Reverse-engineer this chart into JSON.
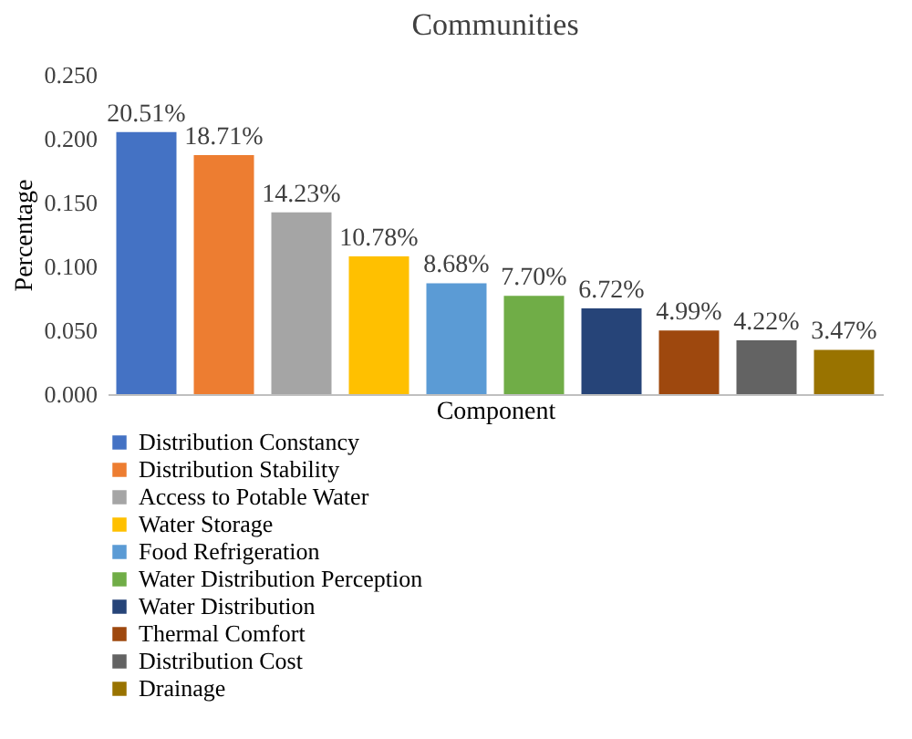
{
  "chart_data": {
    "type": "bar",
    "title": "Communities",
    "xlabel": "Component",
    "ylabel": "Percentage",
    "categories": [
      null,
      null,
      null,
      null,
      null,
      null,
      null,
      null,
      null,
      null
    ],
    "series": [
      {
        "name": "Distribution Constancy",
        "color": "#4472c4",
        "values": [
          0.2051,
          null,
          null,
          null,
          null,
          null,
          null,
          null,
          null,
          null
        ],
        "value_labels": [
          "20.51%",
          null,
          null,
          null,
          null,
          null,
          null,
          null,
          null,
          null
        ]
      },
      {
        "name": "Distribution Stability",
        "color": "#ed7d31",
        "values": [
          null,
          0.1871,
          null,
          null,
          null,
          null,
          null,
          null,
          null,
          null
        ],
        "value_labels": [
          null,
          "18.71%",
          null,
          null,
          null,
          null,
          null,
          null,
          null,
          null
        ]
      },
      {
        "name": "Access to Potable Water",
        "color": "#a5a5a5",
        "values": [
          null,
          null,
          0.1423,
          null,
          null,
          null,
          null,
          null,
          null,
          null
        ],
        "value_labels": [
          null,
          null,
          "14.23%",
          null,
          null,
          null,
          null,
          null,
          null,
          null
        ]
      },
      {
        "name": "Water Storage",
        "color": "#ffc000",
        "values": [
          null,
          null,
          null,
          0.1078,
          null,
          null,
          null,
          null,
          null,
          null
        ],
        "value_labels": [
          null,
          null,
          null,
          "10.78%",
          null,
          null,
          null,
          null,
          null,
          null
        ]
      },
      {
        "name": "Food Refrigeration",
        "color": "#5b9bd5",
        "values": [
          null,
          null,
          null,
          null,
          0.0868,
          null,
          null,
          null,
          null,
          null
        ],
        "value_labels": [
          null,
          null,
          null,
          null,
          "8.68%",
          null,
          null,
          null,
          null,
          null
        ]
      },
      {
        "name": "Water Distribution Perception",
        "color": "#70ad47",
        "values": [
          null,
          null,
          null,
          null,
          null,
          0.077,
          null,
          null,
          null,
          null
        ],
        "value_labels": [
          null,
          null,
          null,
          null,
          null,
          "7.70%",
          null,
          null,
          null,
          null
        ]
      },
      {
        "name": "Water Distribution",
        "color": "#264478",
        "values": [
          null,
          null,
          null,
          null,
          null,
          null,
          0.0672,
          null,
          null,
          null
        ],
        "value_labels": [
          null,
          null,
          null,
          null,
          null,
          null,
          "6.72%",
          null,
          null,
          null
        ]
      },
      {
        "name": "Thermal Comfort",
        "color": "#9e480e",
        "values": [
          null,
          null,
          null,
          null,
          null,
          null,
          null,
          0.0499,
          null,
          null
        ],
        "value_labels": [
          null,
          null,
          null,
          null,
          null,
          null,
          null,
          "4.99%",
          null,
          null
        ]
      },
      {
        "name": "Distribution Cost",
        "color": "#636363",
        "values": [
          null,
          null,
          null,
          null,
          null,
          null,
          null,
          null,
          0.0422,
          null
        ],
        "value_labels": [
          null,
          null,
          null,
          null,
          null,
          null,
          null,
          null,
          "4.22%",
          null
        ]
      },
      {
        "name": "Drainage",
        "color": "#997300",
        "values": [
          null,
          null,
          null,
          null,
          null,
          null,
          null,
          null,
          null,
          0.0347
        ],
        "value_labels": [
          null,
          null,
          null,
          null,
          null,
          null,
          null,
          null,
          null,
          "3.47%"
        ]
      }
    ],
    "ylim": [
      0,
      0.25
    ],
    "yticks": [
      {
        "value": 0,
        "label": "0.000"
      },
      {
        "value": 0.05,
        "label": "0.050"
      },
      {
        "value": 0.1,
        "label": "0.100"
      },
      {
        "value": 0.15,
        "label": "0.150"
      },
      {
        "value": 0.2,
        "label": "0.200"
      },
      {
        "value": 0.25,
        "label": "0.250"
      }
    ],
    "legend": "bottom",
    "tick_labels": "y"
  }
}
